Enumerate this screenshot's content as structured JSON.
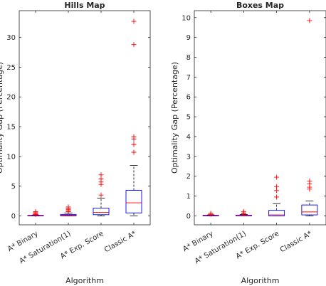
{
  "chart_data": [
    {
      "type": "boxplot",
      "title": "Hills Map",
      "xlabel": "Algorithm",
      "ylabel": "Optimality Gap (Percentage)",
      "ylim": [
        -1.5,
        34.5
      ],
      "yticks": [
        0,
        5,
        10,
        15,
        20,
        25,
        30
      ],
      "categories": [
        "A* Binary",
        "A* Saturation(1)",
        "A* Exp. Score",
        "Classic A*"
      ],
      "boxes": [
        {
          "q1": 0.0,
          "median": 0.05,
          "q3": 0.1,
          "whisker_low": 0.0,
          "whisker_high": 0.15,
          "outliers": [
            0.25,
            0.4,
            0.55,
            0.7
          ]
        },
        {
          "q1": 0.0,
          "median": 0.1,
          "q3": 0.25,
          "whisker_low": 0.0,
          "whisker_high": 0.5,
          "outliers": [
            0.7,
            0.9,
            1.1,
            1.3,
            1.5
          ]
        },
        {
          "q1": 0.2,
          "median": 0.6,
          "q3": 1.3,
          "whisker_low": 0.0,
          "whisker_high": 3.0,
          "outliers": [
            3.5,
            5.3,
            5.7,
            6.2,
            6.9
          ]
        },
        {
          "q1": 0.5,
          "median": 2.2,
          "q3": 4.3,
          "whisker_low": 0.0,
          "whisker_high": 8.5,
          "outliers": [
            10.7,
            12.0,
            12.9,
            13.3,
            28.8,
            32.7
          ]
        }
      ]
    },
    {
      "type": "boxplot",
      "title": "Boxes Map",
      "xlabel": "Algorithm",
      "ylabel": "Optimality Gap (Percentage)",
      "ylim": [
        -0.45,
        10.35
      ],
      "yticks": [
        0,
        1,
        2,
        3,
        4,
        5,
        6,
        7,
        8,
        9,
        10
      ],
      "categories": [
        "A* Binary",
        "A* Saturation(1)",
        "A* Exp. Score",
        "Classic A*"
      ],
      "boxes": [
        {
          "q1": 0.0,
          "median": 0.0,
          "q3": 0.03,
          "whisker_low": 0.0,
          "whisker_high": 0.05,
          "outliers": [
            0.08,
            0.13
          ]
        },
        {
          "q1": 0.0,
          "median": 0.0,
          "q3": 0.04,
          "whisker_low": 0.0,
          "whisker_high": 0.07,
          "outliers": [
            0.1,
            0.15,
            0.22
          ]
        },
        {
          "q1": 0.0,
          "median": 0.05,
          "q3": 0.28,
          "whisker_low": 0.0,
          "whisker_high": 0.62,
          "outliers": [
            0.95,
            1.28,
            1.48,
            1.95
          ]
        },
        {
          "q1": 0.05,
          "median": 0.2,
          "q3": 0.55,
          "whisker_low": 0.0,
          "whisker_high": 0.75,
          "outliers": [
            1.35,
            1.45,
            1.62,
            1.75,
            9.85
          ]
        }
      ]
    }
  ],
  "colors": {
    "box": "#0000ff",
    "median": "#ff0000",
    "whisker": "#000000",
    "outlier": "#ff0000",
    "axis": "#262626"
  }
}
